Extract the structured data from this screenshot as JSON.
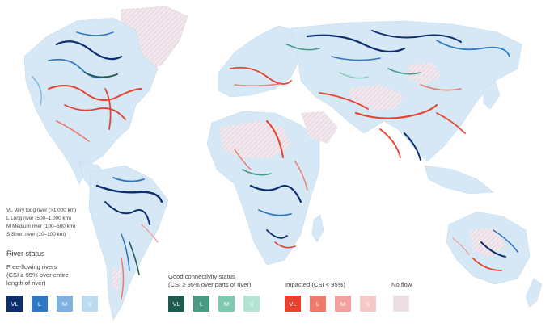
{
  "legend": {
    "abbreviations": [
      "VL  Very long river (>1,000 km)",
      "L  Long river (500–1,000 km)",
      "M  Medium river (100–500 km)",
      "S  Short river (10–100 km)"
    ],
    "status_title": "River status",
    "categories": [
      {
        "label_lines": [
          "Free-flowing rivers",
          "(CSI ≥ 95% over entire",
          "length of river)"
        ],
        "swatches": [
          {
            "code": "VL",
            "color": "#0d2f6e"
          },
          {
            "code": "L",
            "color": "#2f78c4"
          },
          {
            "code": "M",
            "color": "#7fb2df"
          },
          {
            "code": "S",
            "color": "#bcdaf0"
          }
        ]
      },
      {
        "label_lines": [
          "Good connectivity status",
          "(CSI ≥ 95% over parts of river)"
        ],
        "swatches": [
          {
            "code": "VL",
            "color": "#1f5b4e"
          },
          {
            "code": "L",
            "color": "#4a9a86"
          },
          {
            "code": "M",
            "color": "#7fc9b3"
          },
          {
            "code": "S",
            "color": "#b4e2d3"
          }
        ]
      },
      {
        "label_lines": [
          "Impacted (CSI < 95%)"
        ],
        "swatches": [
          {
            "code": "VL",
            "color": "#e8412e"
          },
          {
            "code": "L",
            "color": "#ee7a6e"
          },
          {
            "code": "M",
            "color": "#f2a1a0"
          },
          {
            "code": "S",
            "color": "#f6c9c9"
          }
        ]
      },
      {
        "label_lines": [
          "No flow"
        ],
        "swatches": [
          {
            "code": "",
            "color": "#ecdfe6"
          }
        ]
      }
    ]
  }
}
